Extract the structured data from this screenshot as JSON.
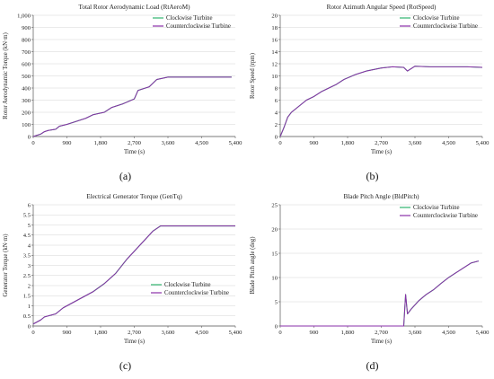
{
  "chart_data": [
    {
      "type": "line",
      "panel_label": "(a)",
      "title": "Total Rotor Aerodynamic Load (RtAeroM)",
      "xlabel": "Time (s)",
      "ylabel": "Rotor Aerodynamic Torque (kN·m)",
      "xlim": [
        0,
        5400
      ],
      "ylim": [
        0,
        1000
      ],
      "xticks": [
        "0",
        "900",
        "1,800",
        "2,700",
        "3,600",
        "4,500",
        "5,400"
      ],
      "yticks": [
        "0",
        "100",
        "200",
        "300",
        "400",
        "500",
        "600",
        "700",
        "800",
        "900",
        "1,000"
      ],
      "legend": [
        "Clockwise Turbine",
        "Counterclockwise Turbine"
      ],
      "legend_position": "top-right",
      "colors": {
        "clockwise": "#2fb46e",
        "counterclockwise": "#8a2fa8"
      },
      "x": [
        0,
        100,
        200,
        300,
        400,
        600,
        700,
        900,
        1100,
        1400,
        1600,
        1900,
        2100,
        2400,
        2700,
        2800,
        3100,
        3300,
        3600,
        4000,
        4500,
        5000,
        5300
      ],
      "series": [
        {
          "name": "Clockwise Turbine",
          "values": [
            0,
            10,
            20,
            40,
            50,
            60,
            85,
            100,
            120,
            150,
            180,
            200,
            240,
            270,
            310,
            380,
            410,
            470,
            490,
            490,
            490,
            490,
            490
          ]
        },
        {
          "name": "Counterclockwise Turbine",
          "values": [
            0,
            10,
            20,
            40,
            50,
            60,
            85,
            100,
            120,
            150,
            180,
            200,
            240,
            270,
            310,
            380,
            410,
            470,
            490,
            490,
            490,
            490,
            490
          ]
        }
      ]
    },
    {
      "type": "line",
      "panel_label": "(b)",
      "title": "Rotor Azimuth Angular Speed (RotSpeed)",
      "xlabel": "Time (s)",
      "ylabel": "Rotor Speed (rpm)",
      "xlim": [
        0,
        5400
      ],
      "ylim": [
        0,
        20
      ],
      "xticks": [
        "0",
        "900",
        "1,800",
        "2,700",
        "3,600",
        "4,500",
        "5,400"
      ],
      "yticks": [
        "0",
        "2",
        "4",
        "6",
        "8",
        "10",
        "12",
        "14",
        "16",
        "18",
        "20"
      ],
      "legend": [
        "Clockwise Turbine",
        "Counterclockwise Turbine"
      ],
      "legend_position": "top-right",
      "colors": {
        "clockwise": "#2fb46e",
        "counterclockwise": "#8a2fa8"
      },
      "x": [
        0,
        100,
        200,
        300,
        500,
        700,
        900,
        1100,
        1300,
        1500,
        1700,
        2000,
        2300,
        2700,
        3000,
        3300,
        3400,
        3600,
        4000,
        4500,
        5000,
        5400
      ],
      "series": [
        {
          "name": "Clockwise Turbine",
          "values": [
            0,
            1.5,
            3.2,
            4.0,
            5.0,
            6.0,
            6.6,
            7.4,
            8.0,
            8.6,
            9.4,
            10.2,
            10.8,
            11.3,
            11.5,
            11.4,
            10.8,
            11.6,
            11.5,
            11.5,
            11.5,
            11.4
          ]
        },
        {
          "name": "Counterclockwise Turbine",
          "values": [
            0,
            1.5,
            3.2,
            4.0,
            5.0,
            6.0,
            6.6,
            7.4,
            8.0,
            8.6,
            9.4,
            10.2,
            10.8,
            11.3,
            11.5,
            11.4,
            10.8,
            11.6,
            11.5,
            11.5,
            11.5,
            11.4
          ]
        }
      ]
    },
    {
      "type": "line",
      "panel_label": "(c)",
      "title": "Electrical Generator Torque (GenTq)",
      "xlabel": "Time (s)",
      "ylabel": "Generator Torque (kN·m)",
      "xlim": [
        0,
        5400
      ],
      "ylim": [
        0,
        6
      ],
      "xticks": [
        "0",
        "900",
        "1,800",
        "2,700",
        "3,600",
        "4,500",
        "5,400"
      ],
      "yticks": [
        "0",
        "0.5",
        "1",
        "1.5",
        "2",
        "2.5",
        "3",
        "3.5",
        "4",
        "4.5",
        "5",
        "5.5",
        "6"
      ],
      "legend": [
        "Clockwise Turbine",
        "Counterclockwise Turbine"
      ],
      "legend_position": "center-right",
      "colors": {
        "clockwise": "#2fb46e",
        "counterclockwise": "#8a2fa8"
      },
      "x": [
        0,
        200,
        300,
        600,
        800,
        1100,
        1400,
        1600,
        1900,
        2200,
        2500,
        2800,
        3000,
        3200,
        3400,
        4000,
        5400
      ],
      "series": [
        {
          "name": "Clockwise Turbine",
          "values": [
            0.1,
            0.3,
            0.45,
            0.6,
            0.9,
            1.2,
            1.5,
            1.7,
            2.1,
            2.6,
            3.3,
            3.9,
            4.3,
            4.7,
            4.95,
            4.95,
            4.95
          ]
        },
        {
          "name": "Counterclockwise Turbine",
          "values": [
            0.1,
            0.3,
            0.45,
            0.6,
            0.9,
            1.2,
            1.5,
            1.7,
            2.1,
            2.6,
            3.3,
            3.9,
            4.3,
            4.7,
            4.95,
            4.95,
            4.95
          ]
        }
      ]
    },
    {
      "type": "line",
      "panel_label": "(d)",
      "title": "Blade Pitch Angle (BldPitch)",
      "xlabel": "Time (s)",
      "ylabel": "Blade Pitch angle (deg)",
      "xlim": [
        0,
        5400
      ],
      "ylim": [
        0,
        25
      ],
      "xticks": [
        "0",
        "900",
        "1,800",
        "2,700",
        "3,600",
        "4,500",
        "5,400"
      ],
      "yticks": [
        "0",
        "5",
        "10",
        "15",
        "20",
        "25"
      ],
      "legend": [
        "Clockwise Turbine",
        "Counterclockwise Turbine"
      ],
      "legend_position": "top-right",
      "colors": {
        "clockwise": "#2fb46e",
        "counterclockwise": "#8a2fa8"
      },
      "x": [
        0,
        1000,
        2000,
        3000,
        3300,
        3350,
        3400,
        3500,
        3700,
        3900,
        4100,
        4300,
        4500,
        4700,
        4900,
        5100,
        5300
      ],
      "series": [
        {
          "name": "Clockwise Turbine",
          "values": [
            0,
            0,
            0,
            0,
            0,
            6.5,
            2.5,
            3.5,
            5.2,
            6.5,
            7.5,
            8.8,
            10.0,
            11.0,
            12.0,
            13.0,
            13.4
          ]
        },
        {
          "name": "Counterclockwise Turbine",
          "values": [
            0,
            0,
            0,
            0,
            0,
            6.5,
            2.5,
            3.5,
            5.2,
            6.5,
            7.5,
            8.8,
            10.0,
            11.0,
            12.0,
            13.0,
            13.4
          ]
        }
      ]
    }
  ]
}
